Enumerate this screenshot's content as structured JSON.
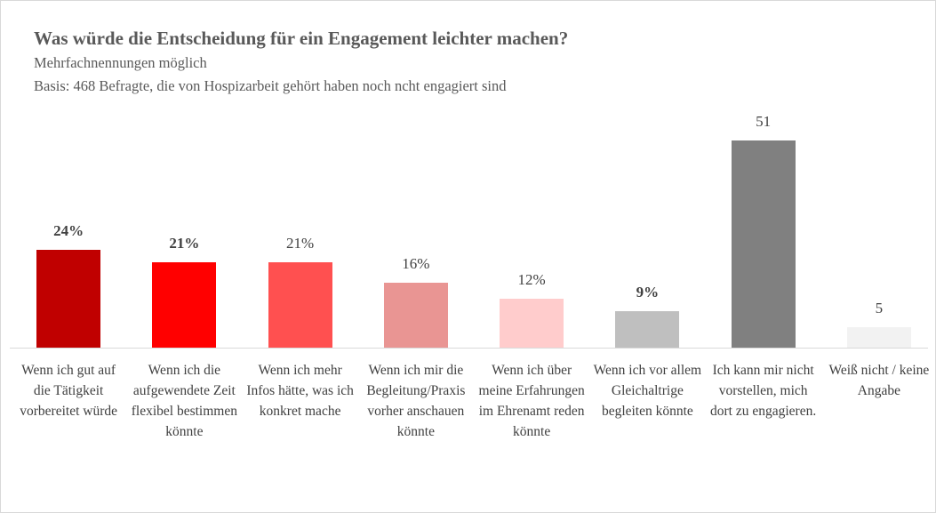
{
  "chart_data": {
    "type": "bar",
    "title": "Was würde die Entscheidung für ein Engagement leichter machen?",
    "subtitle": "Mehrfachnennungen möglich",
    "note": "Basis: 468 Befragte, die von Hospizarbeit gehört haben noch ncht engagiert sind",
    "categories": [
      "Wenn ich gut auf die Tätigkeit vorbereitet würde",
      "Wenn ich die aufgewendete Zeit flexibel bestimmen könnte",
      "Wenn ich mehr Infos hätte, was ich konkret mache",
      "Wenn ich mir die Begleitung/Praxis vorher anschauen könnte",
      "Wenn ich über meine Erfahrungen im Ehrenamt reden könnte",
      "Wenn ich vor allem Gleichaltrige begleiten könnte",
      "Ich kann mir nicht vorstellen, mich dort zu engagieren.",
      "Weiß nicht / keine Angabe"
    ],
    "values": [
      24,
      21,
      21,
      16,
      12,
      9,
      51,
      5
    ],
    "value_labels": [
      "24%",
      "21%",
      "21%",
      "16%",
      "12%",
      "9%",
      "51",
      "5"
    ],
    "value_label_bold": [
      true,
      true,
      false,
      false,
      false,
      true,
      false,
      false
    ],
    "colors": [
      "#c00000",
      "#ff0000",
      "#ff5050",
      "#e99593",
      "#ffcccc",
      "#bfbfbf",
      "#808080",
      "#f2f2f2"
    ]
  }
}
